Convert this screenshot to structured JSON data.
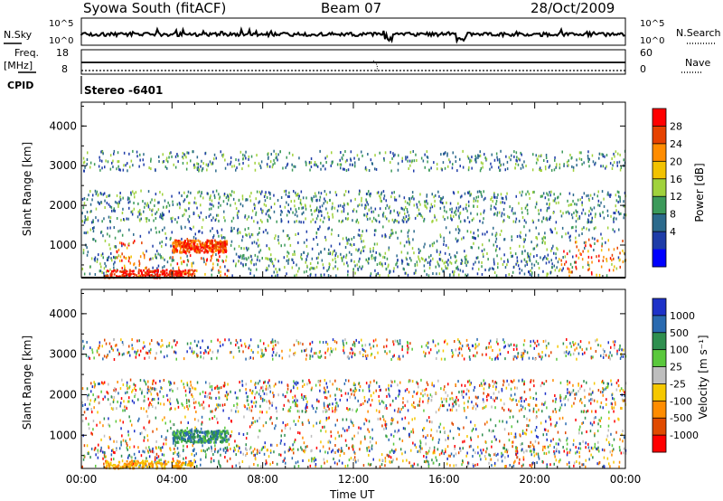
{
  "header": {
    "station": "Syowa South (fitACF)",
    "beam": "Beam 07",
    "date": "28/Oct/2009"
  },
  "top_panels": {
    "nsky_label": "N.Sky",
    "nsky_ticks": [
      "10^5",
      "10^0"
    ],
    "nsearch_label": "N.Search",
    "nsearch_ticks": [
      "10^5",
      "10^0"
    ],
    "freq_label": "Freq.",
    "freq_unit": "[MHz]",
    "freq_ticks": [
      "18",
      "8"
    ],
    "nave_label": "Nave",
    "nave_ticks": [
      "60",
      "0"
    ],
    "cpid_label": "CPID",
    "cpid_text": "Stereo -6401"
  },
  "chart_data": [
    {
      "type": "heatmap",
      "name": "power",
      "ylabel": "Slant Range [km]",
      "ylim": [
        180,
        4600
      ],
      "yticks": [
        "1000",
        "2000",
        "3000",
        "4000"
      ],
      "colorbar_label": "Power [dB]",
      "colorbar_ticks": [
        "28",
        "24",
        "20",
        "16",
        "12",
        "8",
        "4"
      ],
      "colors": [
        "#ff0000",
        "#e64200",
        "#ff8c00",
        "#f2c200",
        "#a0d23c",
        "#3c9a5a",
        "#2c6a8c",
        "#1e3ca8",
        "#0000ff"
      ]
    },
    {
      "type": "heatmap",
      "name": "velocity",
      "ylabel": "Slant Range [km]",
      "ylim": [
        180,
        4600
      ],
      "yticks": [
        "1000",
        "2000",
        "3000",
        "4000"
      ],
      "colorbar_label": "Velocity [m s⁻¹]",
      "colorbar_ticks": [
        "1000",
        "500",
        "100",
        "25",
        "-25",
        "-100",
        "-500",
        "-1000"
      ],
      "colors": [
        "#1e32c8",
        "#2a6ab0",
        "#2f8f4f",
        "#5ac83c",
        "#bebebe",
        "#f5c800",
        "#ff8c00",
        "#e04a00",
        "#ff0000"
      ]
    }
  ],
  "time_axis": {
    "label": "Time UT",
    "ticks": [
      "00:00",
      "04:00",
      "08:00",
      "12:00",
      "16:00",
      "20:00",
      "00:00"
    ]
  }
}
